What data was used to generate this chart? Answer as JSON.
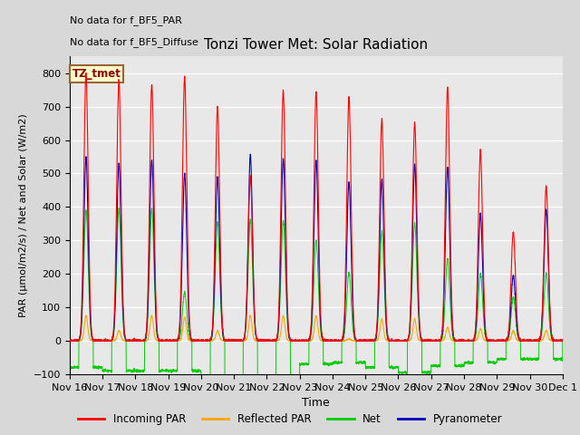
{
  "title": "Tonzi Tower Met: Solar Radiation",
  "xlabel": "Time",
  "ylabel": "PAR (μmol/m2/s) / Net and Solar (W/m2)",
  "ylim": [
    -100,
    850
  ],
  "yticks": [
    -100,
    0,
    100,
    200,
    300,
    400,
    500,
    600,
    700,
    800
  ],
  "annotation_lines": [
    "No data for f_BF5_PAR",
    "No data for f_BF5_Diffuse"
  ],
  "box_label": "TZ_tmet",
  "legend_entries": [
    "Incoming PAR",
    "Reflected PAR",
    "Net",
    "Pyranometer"
  ],
  "line_colors": {
    "incoming_par": "#ff0000",
    "reflected_par": "#ffa500",
    "net": "#00cc00",
    "pyranometer": "#0000bb"
  },
  "background_color": "#e8e8e8",
  "xtick_labels": [
    "Nov 16",
    "Nov 17",
    "Nov 18",
    "Nov 19",
    "Nov 20",
    "Nov 21",
    "Nov 22",
    "Nov 23",
    "Nov 24",
    "Nov 25",
    "Nov 26",
    "Nov 27",
    "Nov 28",
    "Nov 29",
    "Nov 30",
    "Dec 1"
  ],
  "day_peaks_inc": [
    800,
    780,
    765,
    790,
    700,
    490,
    750,
    745,
    730,
    660,
    650,
    760,
    570,
    325,
    460,
    0
  ],
  "day_peaks_pyr": [
    550,
    530,
    540,
    500,
    490,
    555,
    545,
    540,
    475,
    480,
    525,
    520,
    380,
    195,
    390,
    0
  ],
  "day_peaks_ref": [
    75,
    30,
    75,
    70,
    30,
    75,
    75,
    75,
    5,
    65,
    65,
    40,
    35,
    30,
    30,
    0
  ],
  "day_peaks_net": [
    390,
    395,
    395,
    145,
    355,
    360,
    360,
    300,
    205,
    325,
    350,
    245,
    200,
    130,
    200,
    0
  ],
  "day_troughs_net": [
    -80,
    -90,
    -90,
    -90,
    -115,
    -115,
    -110,
    -70,
    -65,
    -80,
    -95,
    -75,
    -65,
    -55,
    -55,
    0
  ]
}
